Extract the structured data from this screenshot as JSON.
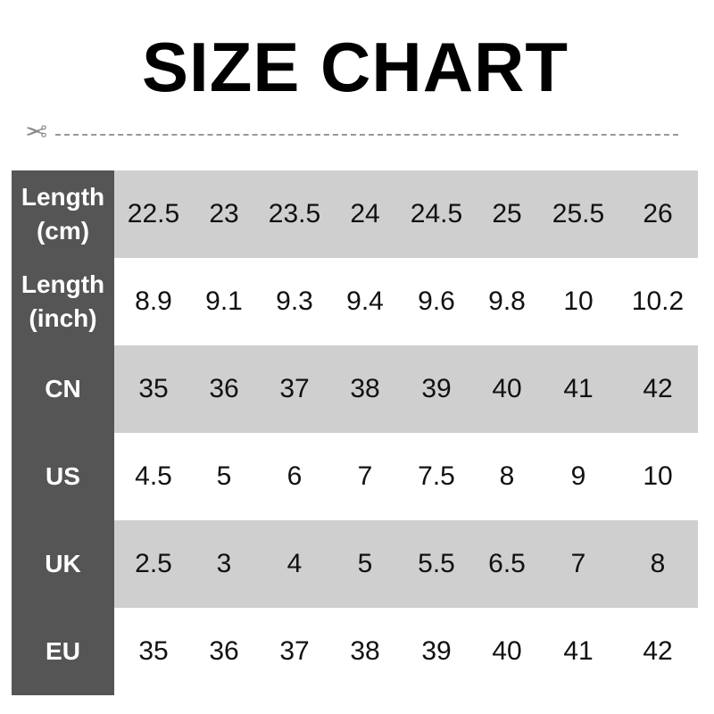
{
  "title": "SIZE CHART",
  "icons": {
    "cut": "scissors-icon"
  },
  "colors": {
    "header_bg": "#555555",
    "stripe_bg": "#d0cfcf"
  },
  "rows": [
    {
      "label": "Length\n(cm)",
      "values": [
        "22.5",
        "23",
        "23.5",
        "24",
        "24.5",
        "25",
        "25.5",
        "26"
      ]
    },
    {
      "label": "Length\n(inch)",
      "values": [
        "8.9",
        "9.1",
        "9.3",
        "9.4",
        "9.6",
        "9.8",
        "10",
        "10.2"
      ]
    },
    {
      "label": "CN",
      "values": [
        "35",
        "36",
        "37",
        "38",
        "39",
        "40",
        "41",
        "42"
      ]
    },
    {
      "label": "US",
      "values": [
        "4.5",
        "5",
        "6",
        "7",
        "7.5",
        "8",
        "9",
        "10"
      ]
    },
    {
      "label": "UK",
      "values": [
        "2.5",
        "3",
        "4",
        "5",
        "5.5",
        "6.5",
        "7",
        "8"
      ]
    },
    {
      "label": "EU",
      "values": [
        "35",
        "36",
        "37",
        "38",
        "39",
        "40",
        "41",
        "42"
      ]
    }
  ]
}
